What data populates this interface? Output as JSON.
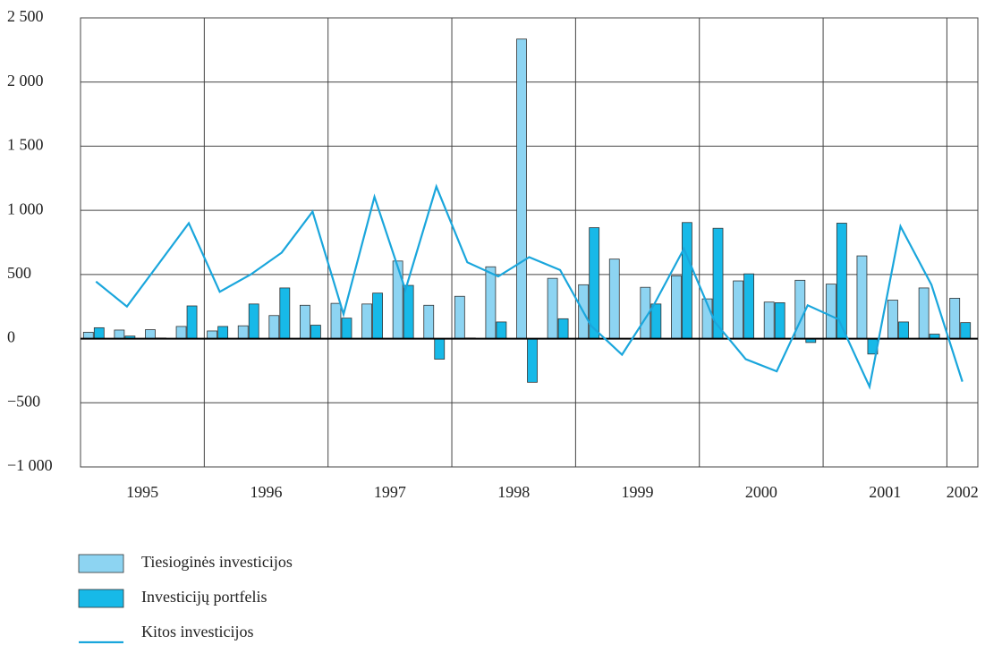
{
  "chart_data": {
    "type": "bar_line",
    "categories": [
      null,
      null,
      null,
      null,
      null,
      null,
      null,
      null,
      null,
      null,
      null,
      null,
      null,
      null,
      null,
      null,
      null,
      null,
      null,
      null,
      null,
      null,
      null,
      null,
      null,
      null,
      null,
      null,
      null
    ],
    "groups": [
      "1995",
      "1996",
      "1997",
      "1998",
      "1999",
      "2000",
      "2001",
      "2002"
    ],
    "series": [
      {
        "name": "Tiesioginės investicijos",
        "color": "#8dd4f2",
        "kind": "bar",
        "values": [
          50,
          67,
          70,
          95,
          60,
          100,
          180,
          260,
          275,
          270,
          605,
          260,
          330,
          560,
          2335,
          470,
          420,
          620,
          400,
          490,
          310,
          450,
          285,
          455,
          425,
          645,
          300,
          395,
          315
        ]
      },
      {
        "name": "Investicijų portfelis",
        "color": "#17b9e8",
        "kind": "bar",
        "values": [
          85,
          20,
          5,
          255,
          95,
          270,
          395,
          105,
          160,
          355,
          415,
          -160,
          5,
          130,
          -340,
          155,
          865,
          0,
          270,
          905,
          860,
          505,
          280,
          -30,
          900,
          -120,
          130,
          35,
          125
        ]
      },
      {
        "name": "Kitos investicijos",
        "color": "#1aa6dc",
        "kind": "line",
        "values": [
          445,
          250,
          575,
          900,
          365,
          500,
          670,
          990,
          190,
          1105,
          380,
          1185,
          595,
          485,
          635,
          535,
          100,
          -125,
          250,
          700,
          130,
          -160,
          -255,
          260,
          150,
          -375,
          875,
          420,
          -335
        ]
      }
    ],
    "ylim": [
      -1000,
      2500
    ],
    "yticks": [
      {
        "value": -1000,
        "label": "−1 000"
      },
      {
        "value": -500,
        "label": "−500"
      },
      0,
      500,
      {
        "value": 1000,
        "label": "1 000"
      },
      {
        "value": 1500,
        "label": "1 500"
      },
      {
        "value": 2000,
        "label": "2 000"
      },
      {
        "value": 2500,
        "label": "2 500"
      }
    ],
    "grid": true
  }
}
